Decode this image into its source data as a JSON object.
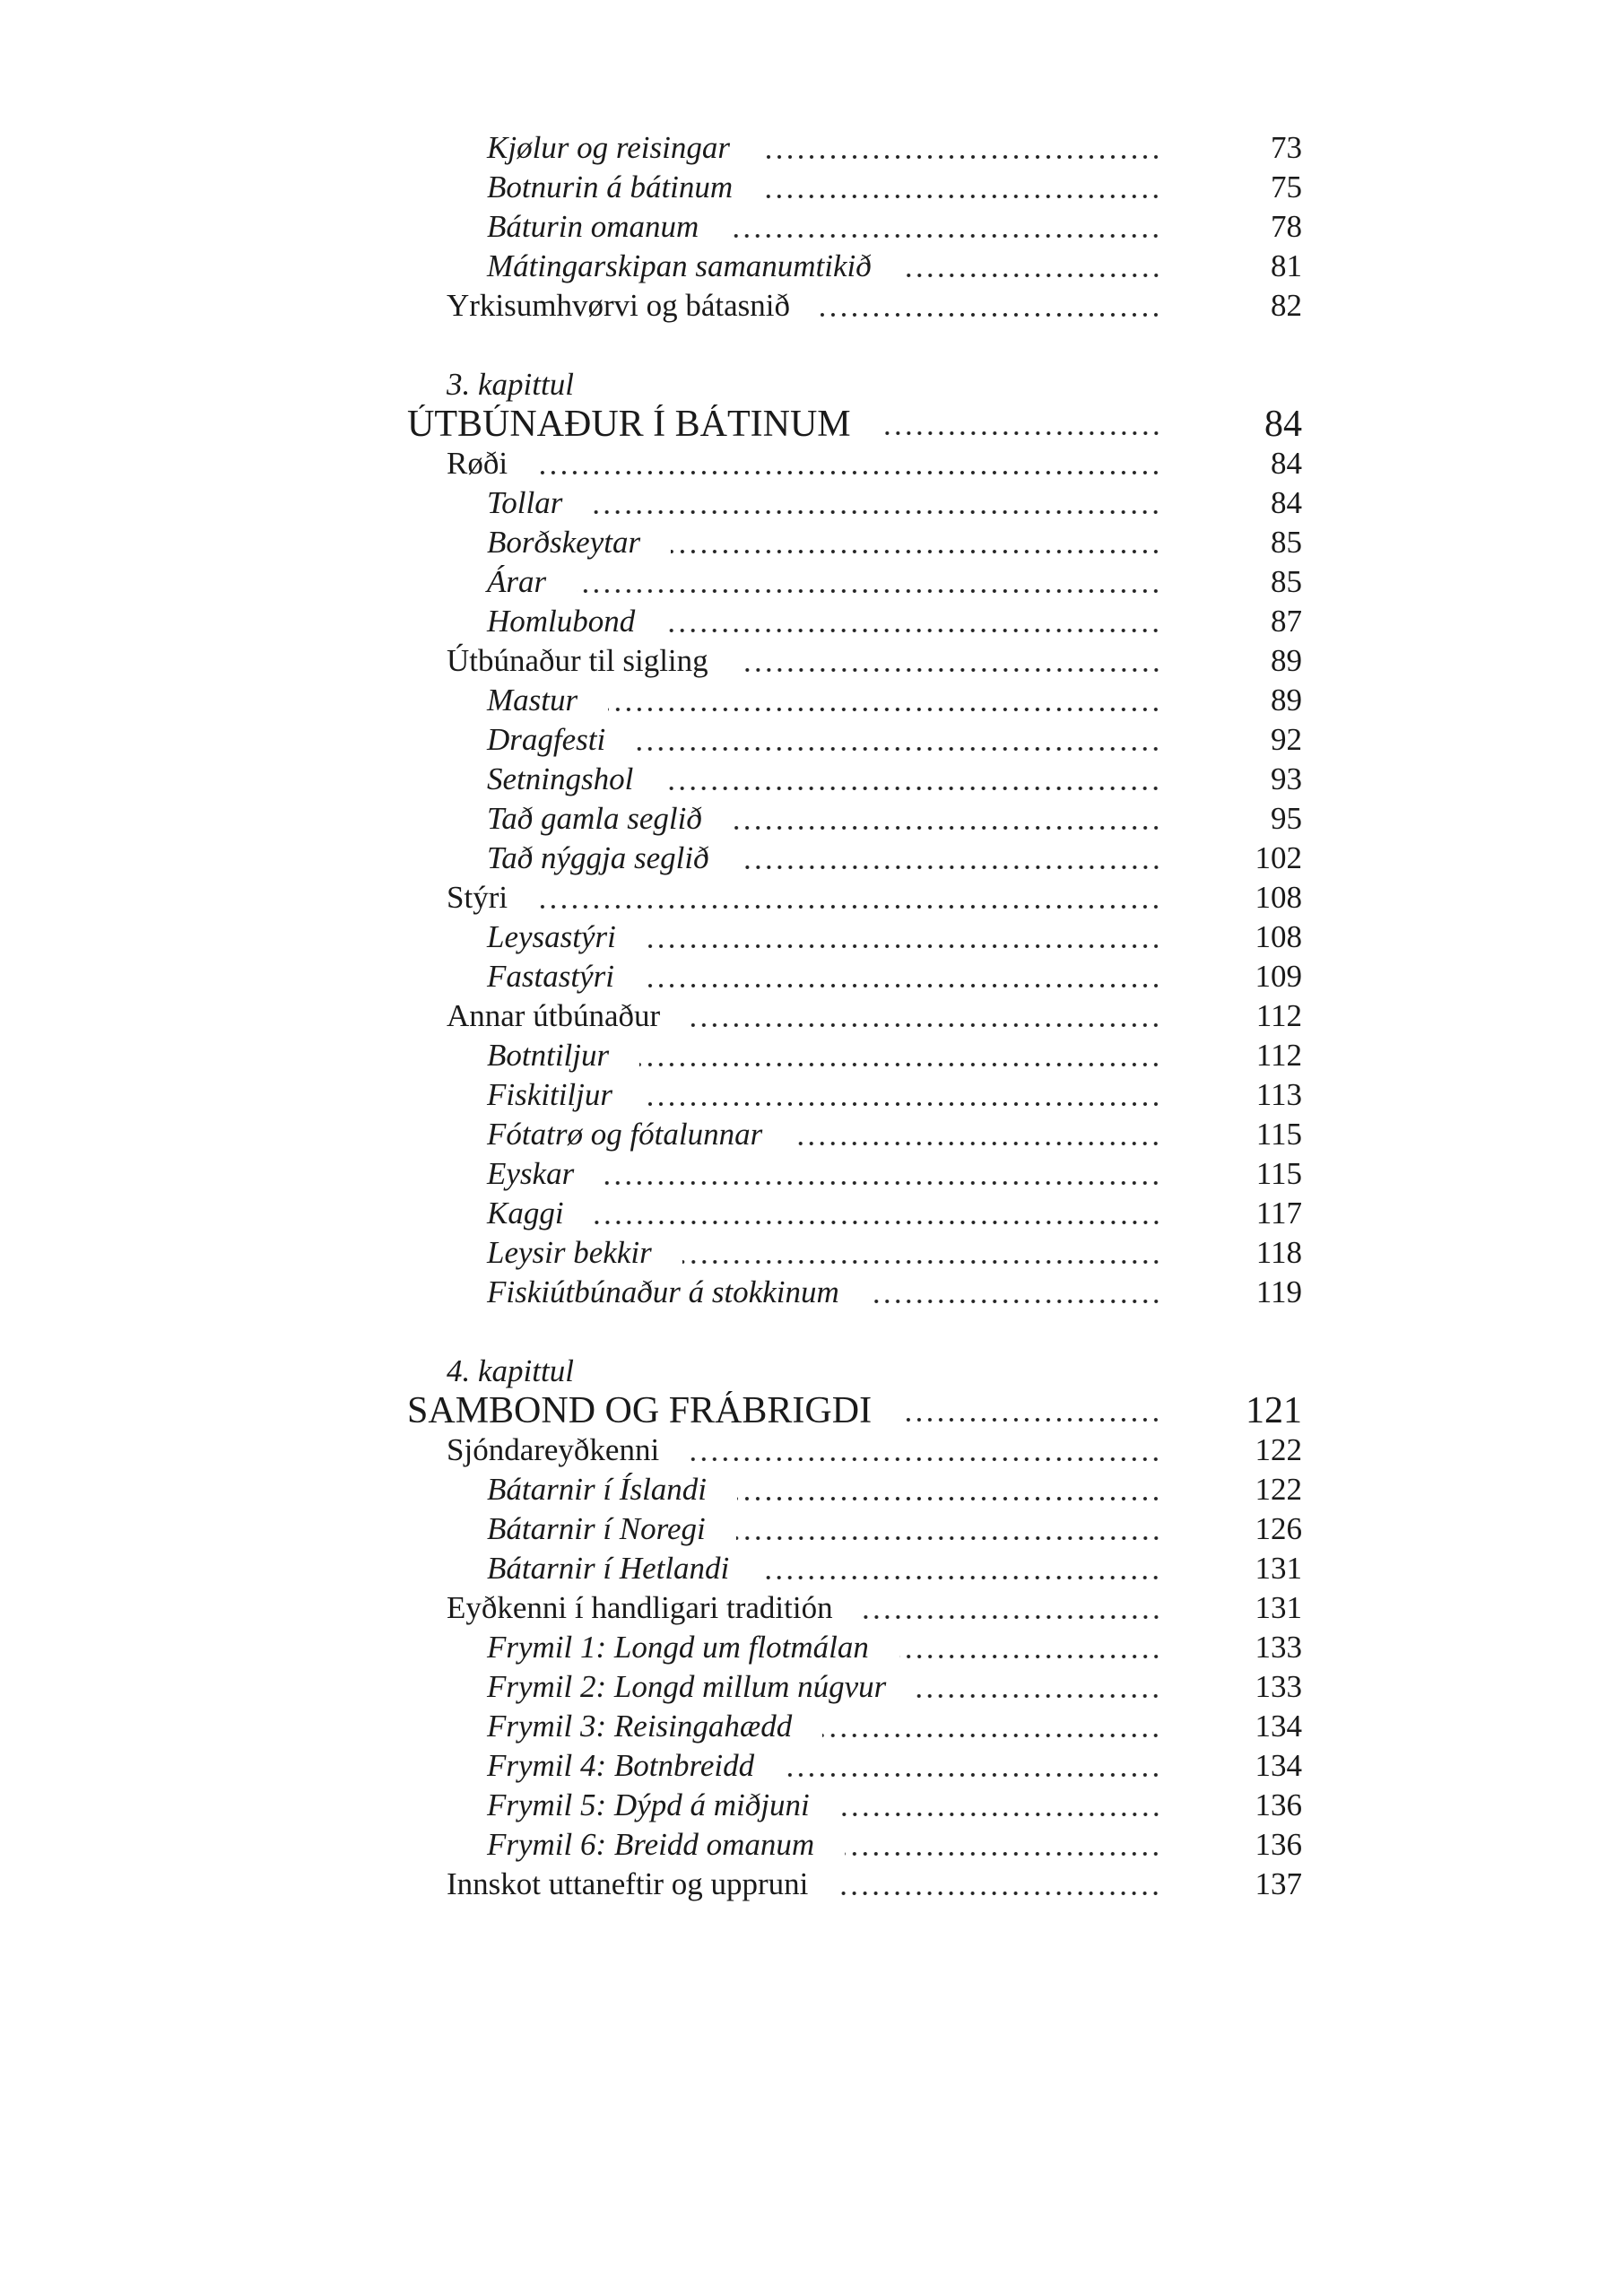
{
  "entries": [
    {
      "level": "subsection",
      "title": "Kjølur og reisingar",
      "page": "73"
    },
    {
      "level": "subsection",
      "title": "Botnurin á bátinum",
      "page": "75"
    },
    {
      "level": "subsection",
      "title": "Báturin omanum",
      "page": "78"
    },
    {
      "level": "subsection",
      "title": "Mátingarskipan samanumtikið",
      "page": "81"
    },
    {
      "level": "section",
      "title": "Yrkisumhvørvi og bátasnið",
      "page": "82"
    },
    {
      "level": "chapter-label",
      "title": "3. kapittul",
      "page": "",
      "gap_before": true
    },
    {
      "level": "chapter",
      "title": "ÚTBÚNAÐUR Í BÁTINUM",
      "page": "84"
    },
    {
      "level": "section",
      "title": "Røði",
      "page": "84"
    },
    {
      "level": "subsection",
      "title": "Tollar",
      "page": "84"
    },
    {
      "level": "subsection",
      "title": "Borðskeytar",
      "page": "85"
    },
    {
      "level": "subsection",
      "title": "Árar",
      "page": "85"
    },
    {
      "level": "subsection",
      "title": "Homlubond",
      "page": "87"
    },
    {
      "level": "section",
      "title": "Útbúnaður til sigling",
      "page": "89"
    },
    {
      "level": "subsection",
      "title": "Mastur",
      "page": "89"
    },
    {
      "level": "subsection",
      "title": "Dragfesti",
      "page": "92"
    },
    {
      "level": "subsection",
      "title": "Setningshol",
      "page": "93"
    },
    {
      "level": "subsection",
      "title": "Tað gamla seglið",
      "page": "95"
    },
    {
      "level": "subsection",
      "title": "Tað nýggja seglið",
      "page": "102"
    },
    {
      "level": "section",
      "title": "Stýri",
      "page": "108"
    },
    {
      "level": "subsection",
      "title": "Leysastýri",
      "page": "108"
    },
    {
      "level": "subsection",
      "title": "Fastastýri",
      "page": "109"
    },
    {
      "level": "section",
      "title": "Annar útbúnaður",
      "page": "112"
    },
    {
      "level": "subsection",
      "title": "Botntiljur",
      "page": "112"
    },
    {
      "level": "subsection",
      "title": "Fiskitiljur",
      "page": "113"
    },
    {
      "level": "subsection",
      "title": "Fótatrø og fótalunnar",
      "page": "115"
    },
    {
      "level": "subsection",
      "title": "Eyskar",
      "page": "115"
    },
    {
      "level": "subsection",
      "title": "Kaggi",
      "page": "117"
    },
    {
      "level": "subsection",
      "title": "Leysir bekkir",
      "page": "118"
    },
    {
      "level": "subsection",
      "title": "Fiskiútbúnaður á stokkinum",
      "page": "119"
    },
    {
      "level": "chapter-label",
      "title": "4. kapittul",
      "page": "",
      "gap_before": true
    },
    {
      "level": "chapter",
      "title": "SAMBOND OG FRÁBRIGDI",
      "page": "121"
    },
    {
      "level": "section",
      "title": "Sjóndareyðkenni",
      "page": "122"
    },
    {
      "level": "subsection",
      "title": "Bátarnir í Íslandi",
      "page": "122"
    },
    {
      "level": "subsection",
      "title": "Bátarnir í Noregi",
      "page": "126"
    },
    {
      "level": "subsection",
      "title": "Bátarnir í Hetlandi",
      "page": "131"
    },
    {
      "level": "section",
      "title": "Eyðkenni í handligari traditión",
      "page": "131"
    },
    {
      "level": "subsection",
      "title": "Frymil 1: Longd um flotmálan",
      "page": "133"
    },
    {
      "level": "subsection",
      "title": "Frymil 2: Longd millum núgvur",
      "page": "133"
    },
    {
      "level": "subsection",
      "title": "Frymil 3: Reisingahædd",
      "page": "134"
    },
    {
      "level": "subsection",
      "title": "Frymil 4: Botnbreidd",
      "page": "134"
    },
    {
      "level": "subsection",
      "title": "Frymil 5: Dýpd á miðjuni",
      "page": "136"
    },
    {
      "level": "subsection",
      "title": "Frymil 6: Breidd omanum",
      "page": "136"
    },
    {
      "level": "section",
      "title": "Innskot uttaneftir og uppruni",
      "page": "137"
    }
  ]
}
